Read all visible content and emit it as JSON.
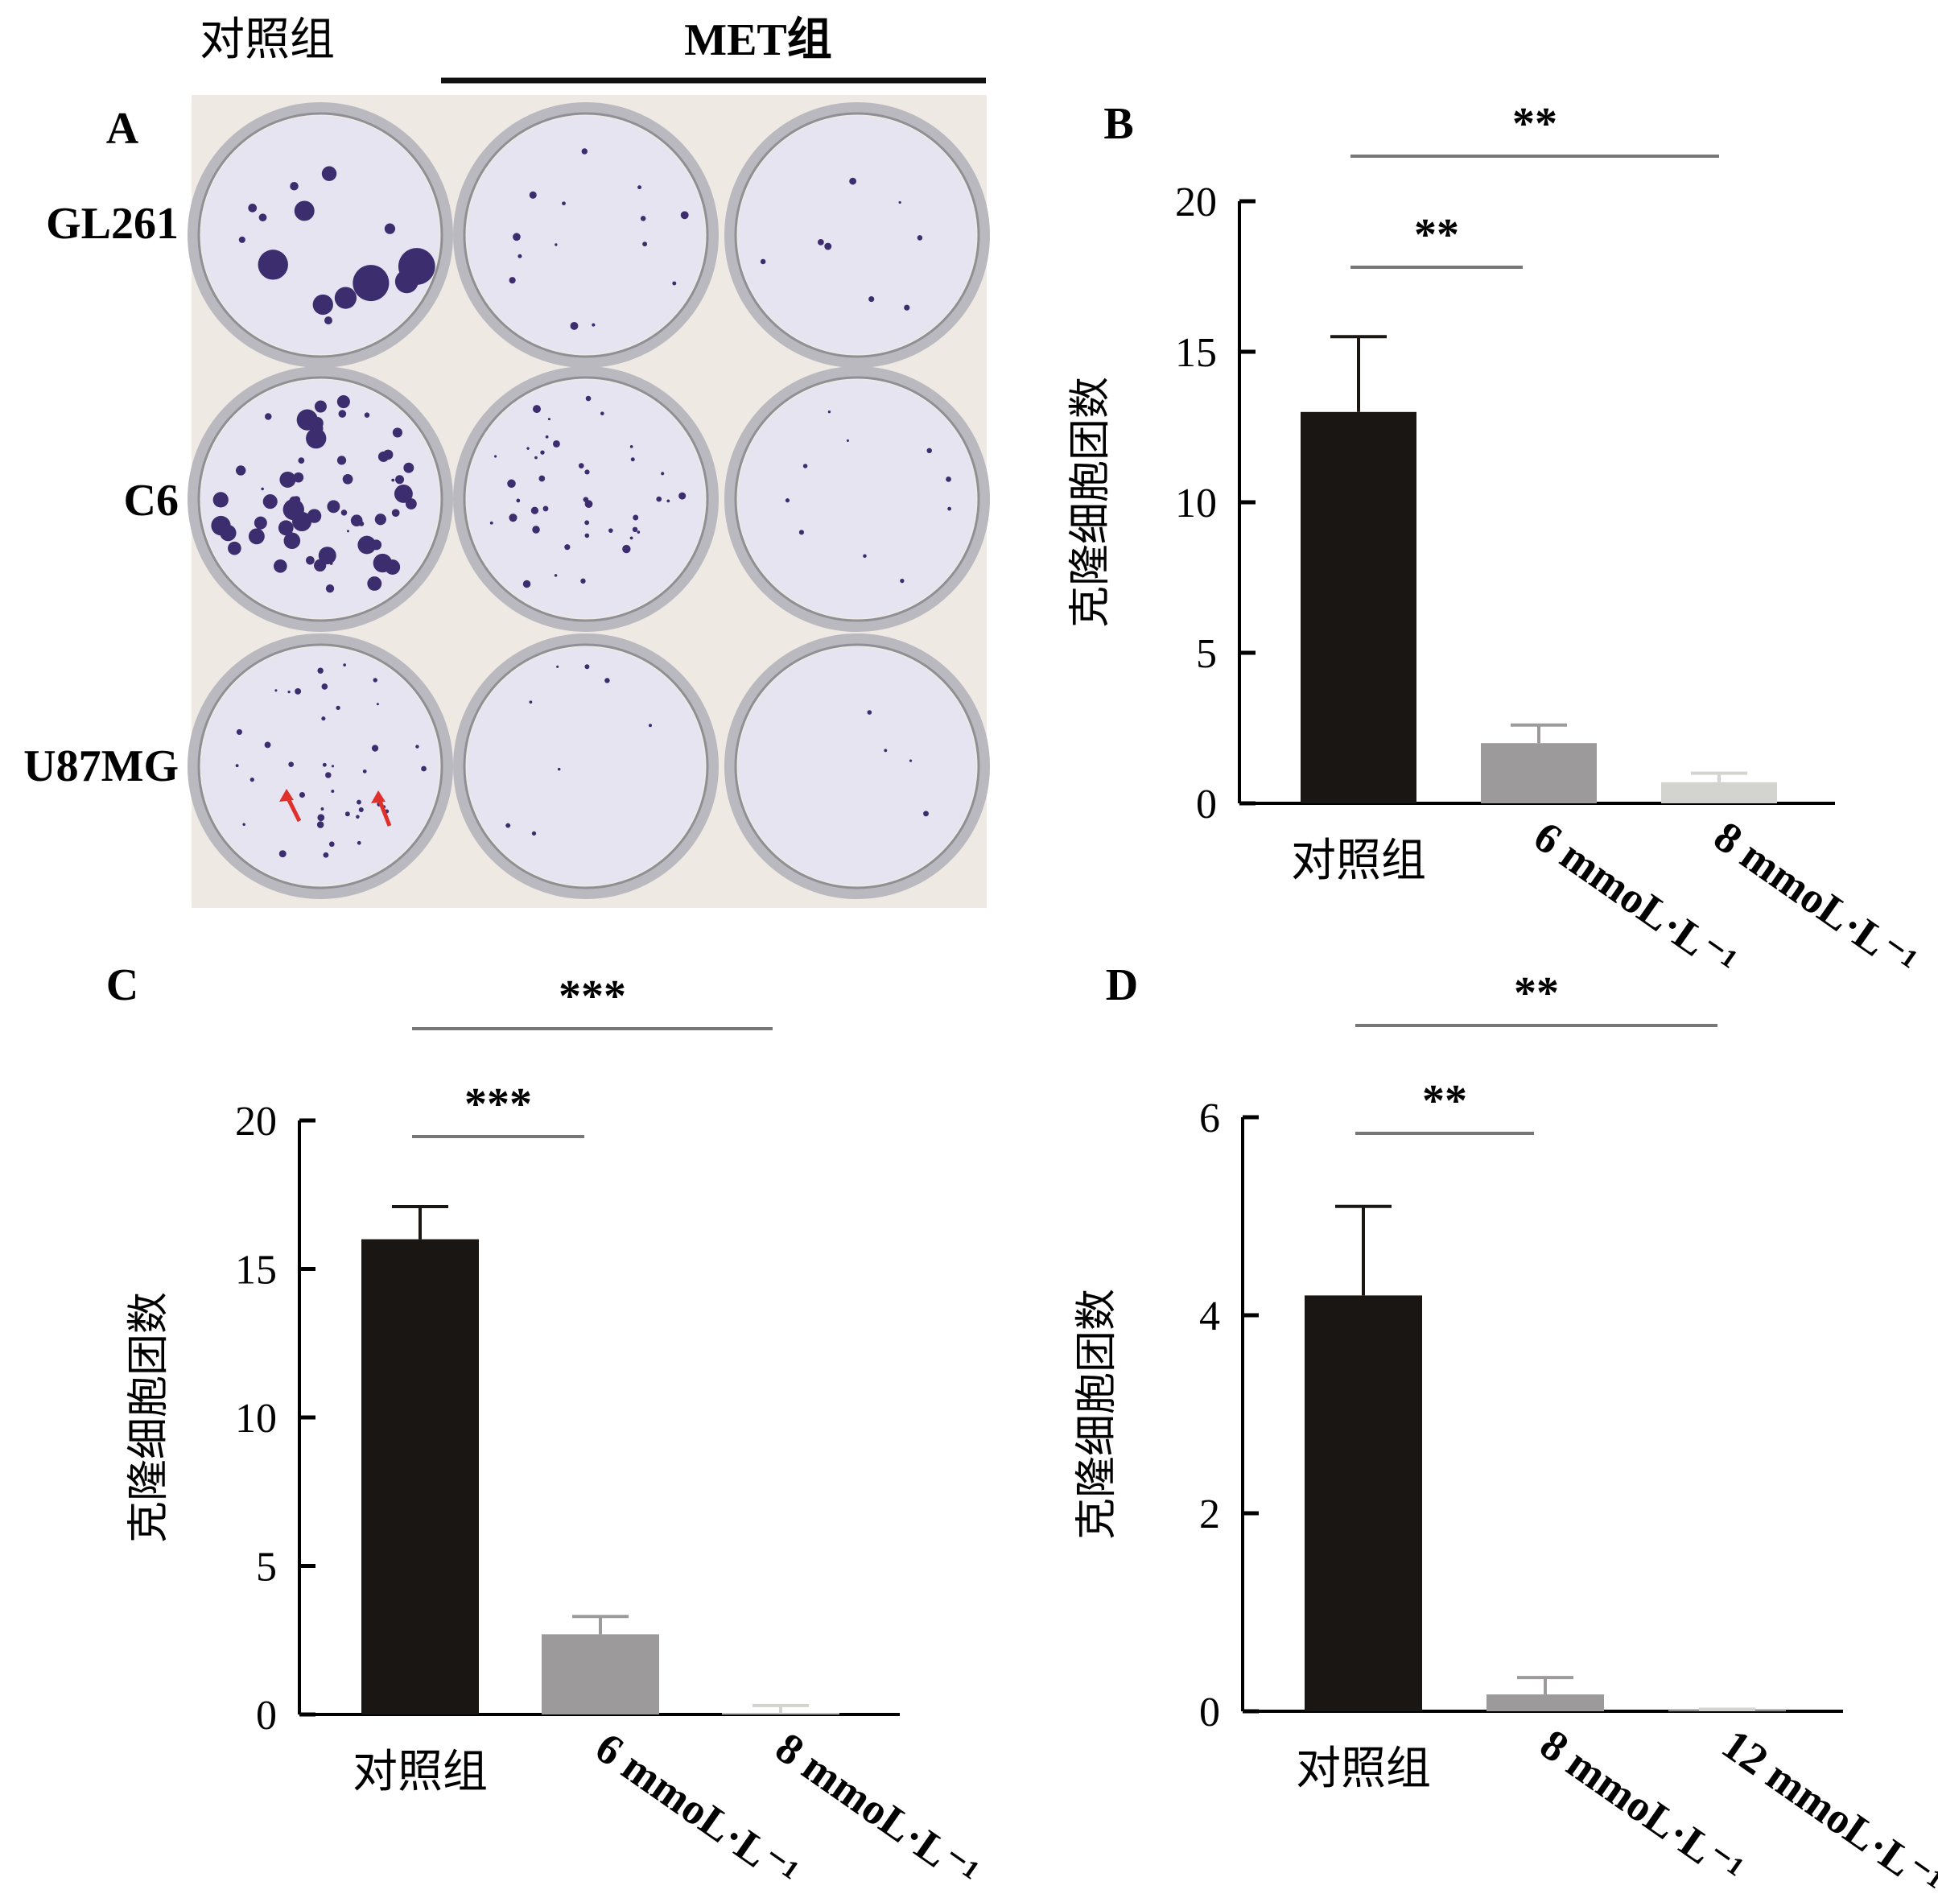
{
  "panel_a": {
    "letter": "A",
    "group_labels": {
      "control": "对照组",
      "met": "MET组"
    },
    "row_labels": [
      "GL261",
      "C6",
      "U87MG"
    ],
    "colors": {
      "paper": "#efe9e4",
      "well_fill": "#e6e4f0",
      "well_ring": "#b9b9bf",
      "colony": "#3c2d6e",
      "arrow": "#e0302b"
    }
  },
  "chart_data": [
    {
      "panel": "B",
      "type": "bar",
      "categories": [
        "对照组",
        "6 mmoL·L⁻¹",
        "8 mmoL·L⁻¹"
      ],
      "values": [
        13,
        2,
        0.7
      ],
      "errors": [
        2.5,
        0.6,
        0.3
      ],
      "colors": [
        "#1a1614",
        "#9c9a9b",
        "#d3d3d0"
      ],
      "ylabel": "克隆细胞团数",
      "xlabel": "",
      "ylim": [
        0,
        20
      ],
      "yticks": [
        0,
        5,
        10,
        15,
        20
      ],
      "significance": [
        {
          "from": 0,
          "to": 1,
          "label": "**"
        },
        {
          "from": 0,
          "to": 2,
          "label": "**"
        }
      ]
    },
    {
      "panel": "C",
      "type": "bar",
      "categories": [
        "对照组",
        "6 mmoL·L⁻¹",
        "8 mmoL·L⁻¹"
      ],
      "values": [
        16,
        2.7,
        0.05
      ],
      "errors": [
        1.1,
        0.6,
        0.25
      ],
      "colors": [
        "#1a1614",
        "#9c9a9b",
        "#d3d3d0"
      ],
      "ylabel": "克隆细胞团数",
      "xlabel": "",
      "ylim": [
        0,
        20
      ],
      "yticks": [
        0,
        5,
        10,
        15,
        20
      ],
      "significance": [
        {
          "from": 0,
          "to": 1,
          "label": "***"
        },
        {
          "from": 0,
          "to": 2,
          "label": "***"
        }
      ]
    },
    {
      "panel": "D",
      "type": "bar",
      "categories": [
        "对照组",
        "8 mmoL·L⁻¹",
        "12 mmoL·L⁻¹"
      ],
      "values": [
        4.2,
        0.17,
        0.01
      ],
      "errors": [
        0.9,
        0.17,
        0.01
      ],
      "colors": [
        "#1a1614",
        "#9c9a9b",
        "#d3d3d0"
      ],
      "ylabel": "克隆细胞团数",
      "xlabel": "",
      "ylim": [
        0,
        6
      ],
      "yticks": [
        0,
        2,
        4,
        6
      ],
      "significance": [
        {
          "from": 0,
          "to": 1,
          "label": "**"
        },
        {
          "from": 0,
          "to": 2,
          "label": "**"
        }
      ]
    }
  ]
}
